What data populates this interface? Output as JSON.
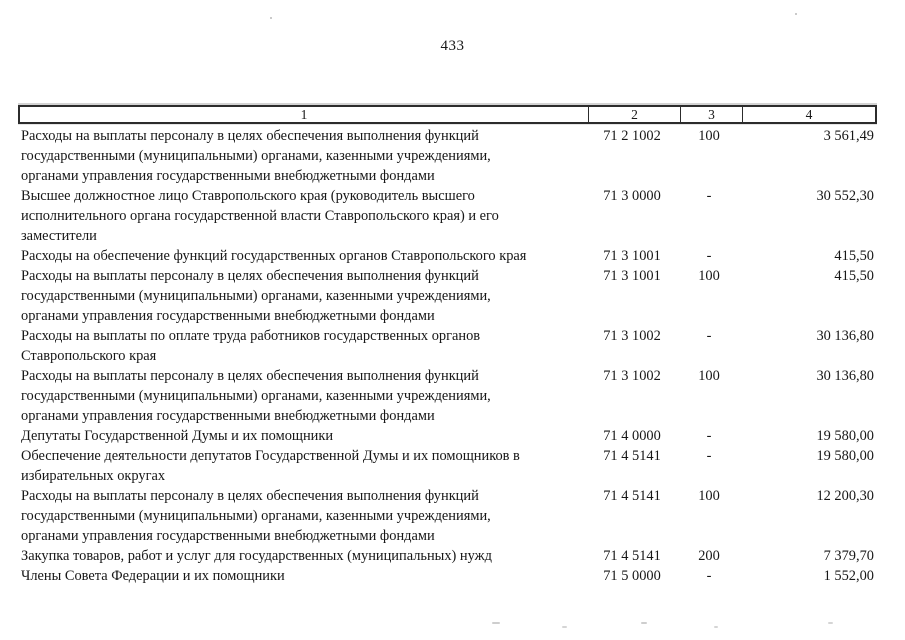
{
  "page": {
    "number": "433"
  },
  "table": {
    "headers": [
      "1",
      "2",
      "3",
      "4"
    ],
    "rows": [
      {
        "lines": [
          "Расходы на выплаты персоналу в целях обеспечения выполнения функций",
          "государственными (муниципальными) органами, казенными учреждениями,",
          "органами управления государственными внебюджетными фондами"
        ],
        "code": "71 2 1002",
        "group": "100",
        "amount": "3 561,49"
      },
      {
        "lines": [
          "Высшее должностное лицо Ставропольского края (руководитель высшего",
          "исполнительного органа государственной власти Ставропольского края) и его",
          "заместители"
        ],
        "code": "71 3 0000",
        "group": "-",
        "amount": "30 552,30"
      },
      {
        "lines": [
          "Расходы на обеспечение функций государственных органов Ставропольского края"
        ],
        "code": "71 3 1001",
        "group": "-",
        "amount": "415,50"
      },
      {
        "lines": [
          "Расходы на выплаты персоналу в целях обеспечения выполнения функций",
          "государственными (муниципальными) органами, казенными учреждениями,",
          "органами управления государственными внебюджетными фондами"
        ],
        "code": "71 3 1001",
        "group": "100",
        "amount": "415,50"
      },
      {
        "lines": [
          "Расходы на выплаты по оплате труда работников государственных органов",
          "Ставропольского края"
        ],
        "code": "71 3 1002",
        "group": "-",
        "amount": "30 136,80"
      },
      {
        "lines": [
          "Расходы на выплаты персоналу в целях обеспечения выполнения функций",
          "государственными (муниципальными) органами, казенными учреждениями,",
          "органами управления государственными внебюджетными фондами"
        ],
        "code": "71 3 1002",
        "group": "100",
        "amount": "30 136,80"
      },
      {
        "lines": [
          "Депутаты Государственной Думы и их помощники"
        ],
        "code": "71 4 0000",
        "group": "-",
        "amount": "19 580,00"
      },
      {
        "lines": [
          "Обеспечение деятельности депутатов Государственной Думы и их помощников в",
          "избирательных округах"
        ],
        "code": "71 4 5141",
        "group": "-",
        "amount": "19 580,00"
      },
      {
        "lines": [
          "Расходы на выплаты персоналу в целях обеспечения выполнения функций",
          "государственными (муниципальными) органами, казенными учреждениями,",
          "органами управления государственными внебюджетными фондами"
        ],
        "code": "71 4 5141",
        "group": "100",
        "amount": "12 200,30"
      },
      {
        "lines": [
          "Закупка товаров, работ и услуг для государственных (муниципальных) нужд"
        ],
        "code": "71 4 5141",
        "group": "200",
        "amount": "7 379,70"
      },
      {
        "lines": [
          "Члены Совета Федерации и их помощники"
        ],
        "code": "71 5 0000",
        "group": "-",
        "amount": "1 552,00"
      }
    ]
  }
}
